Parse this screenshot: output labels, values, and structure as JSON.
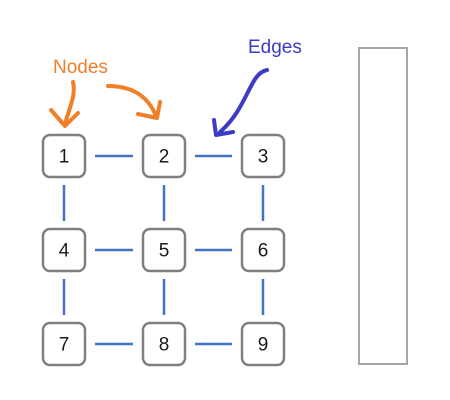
{
  "nodes": [
    {
      "id": "1",
      "label": "1"
    },
    {
      "id": "2",
      "label": "2"
    },
    {
      "id": "3",
      "label": "3"
    },
    {
      "id": "4",
      "label": "4"
    },
    {
      "id": "5",
      "label": "5"
    },
    {
      "id": "6",
      "label": "6"
    },
    {
      "id": "7",
      "label": "7"
    },
    {
      "id": "8",
      "label": "8"
    },
    {
      "id": "9",
      "label": "9"
    }
  ],
  "edges": [
    [
      "1",
      "2"
    ],
    [
      "2",
      "3"
    ],
    [
      "4",
      "5"
    ],
    [
      "5",
      "6"
    ],
    [
      "7",
      "8"
    ],
    [
      "8",
      "9"
    ],
    [
      "1",
      "4"
    ],
    [
      "4",
      "7"
    ],
    [
      "2",
      "5"
    ],
    [
      "5",
      "8"
    ],
    [
      "3",
      "6"
    ],
    [
      "6",
      "9"
    ]
  ],
  "annotations": {
    "nodes_label": "Nodes",
    "edges_label": "Edges"
  },
  "colors": {
    "nodes_annotation": "#f07f2a",
    "edges_annotation": "#3b3bc8",
    "edge": "#4472c4",
    "node_border": "#7f7f7f",
    "side_box_border": "#a6a6a6"
  }
}
